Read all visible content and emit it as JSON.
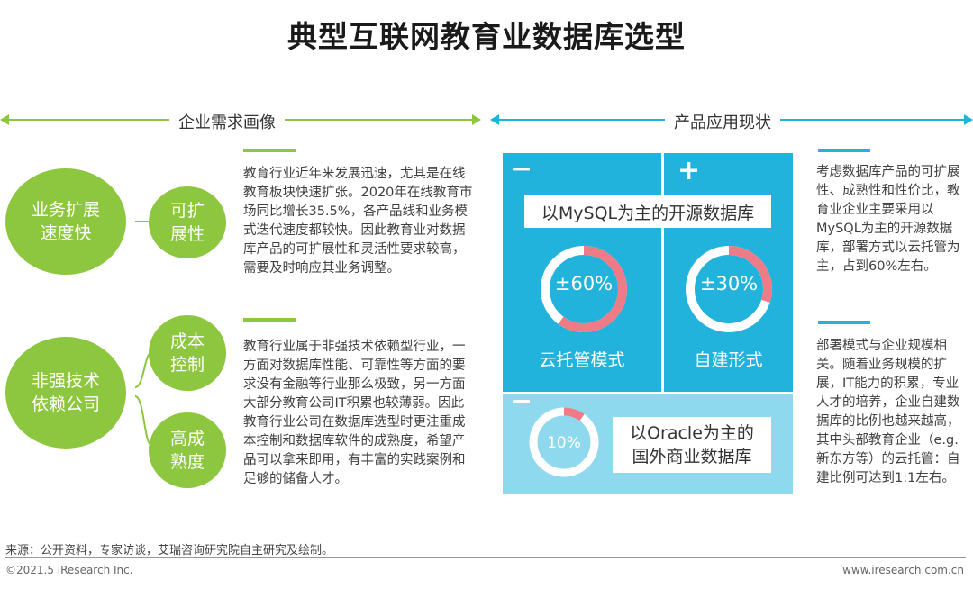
{
  "title": "典型互联网教育业数据库选型",
  "sections": {
    "left_label": "企业需求画像",
    "right_label": "产品应用现状"
  },
  "left": {
    "group1": {
      "main": "业务扩展速度快",
      "sub": "可扩展性",
      "text": "教育行业近年来发展迅速，尤其是在线教育板块快速扩张。2020年在线教育市场同比增长35.5%，各产品线和业务模式迭代速度都较快。因此教育业对数据库产品的可扩展性和灵活性要求较高，需要及时响应其业务调整。"
    },
    "group2": {
      "main": "非强技术依赖公司",
      "sub1": "成本控制",
      "sub2": "高成熟度",
      "text": "教育行业属于非强技术依赖型行业，一方面对数据库性能、可靠性等方面的要求没有金融等行业那么极致，另一方面大部分教育公司IT积累也较薄弱。因此教育行业公司在数据库选型时更注重成本控制和数据库软件的成熟度，希望产品可以拿来即用，有丰富的实践案例和足够的储备人才。"
    }
  },
  "center": {
    "minus_sign": "−",
    "plus_sign": "+",
    "top_box": "以MySQL为主的开源数据库",
    "donut1": {
      "label": "±60%",
      "value": 60,
      "caption": "云托管模式"
    },
    "donut2": {
      "label": "±30%",
      "value": 30,
      "caption": "自建形式"
    },
    "donut3": {
      "label": "10%",
      "value": 10
    },
    "bottom_box_line1": "以Oracle为主的",
    "bottom_box_line2": "国外商业数据库",
    "colors": {
      "blue": "#22b3dd",
      "light_blue": "#8fd9ef",
      "pink": "#ee7b86",
      "green": "#8dc63f"
    }
  },
  "right": {
    "text1": "考虑数据库产品的可扩展性、成熟性和性价比，教育业企业主要采用以MySQL为主的开源数据库，部署方式以云托管为主，占到60%左右。",
    "text2": "部署模式与企业规模相关。随着业务规模的扩展，IT能力的积累，专业人才的培养，企业自建数据库的比例也越来越高，其中头部教育企业（e.g.新东方等）的云托管：自建比例可达到1:1左右。"
  },
  "footer": {
    "source": "来源：公开资料，专家访谈，艾瑞咨询研究院自主研究及绘制。",
    "copyright": "©2021.5 iResearch Inc.",
    "website": "www.iresearch.com.cn"
  }
}
